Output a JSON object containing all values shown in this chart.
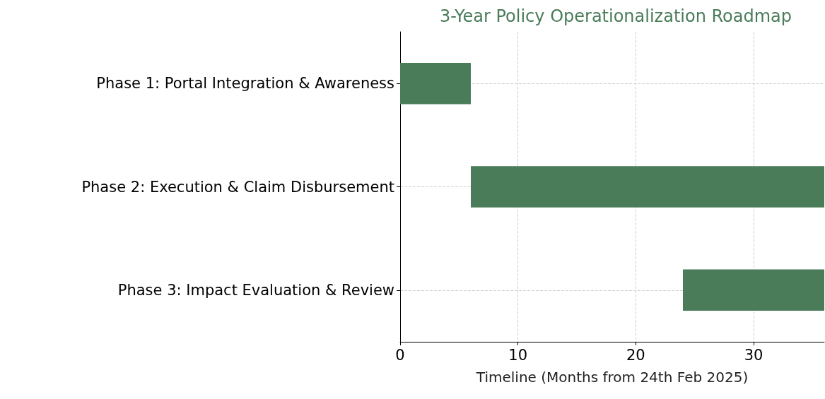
{
  "chart_data": {
    "type": "bar",
    "orientation": "horizontal",
    "title": "3-Year Policy Operationalization Roadmap",
    "xlabel": "Timeline (Months from 24th Feb 2025)",
    "categories": [
      "Phase 1: Portal Integration & Awareness",
      "Phase 2: Execution & Claim Disbursement",
      "Phase 3: Impact Evaluation & Review"
    ],
    "base": [
      0,
      6,
      24
    ],
    "values": [
      6,
      30,
      12
    ],
    "color": "#4a7c59",
    "xlim": [
      0,
      36
    ],
    "xticks": [
      0,
      10,
      20,
      30
    ],
    "grid": true
  }
}
